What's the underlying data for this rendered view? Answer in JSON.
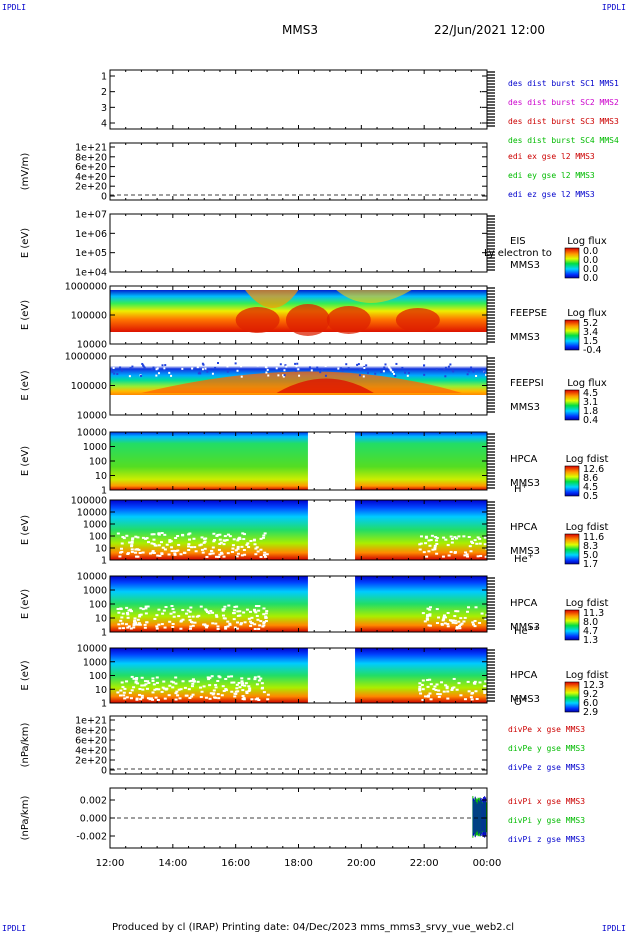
{
  "header": {
    "corner_left_top": "IPDLI",
    "corner_right_top": "IPDLI",
    "corner_left_bottom": "IPDLI",
    "corner_right_bottom": "IPDLI",
    "spacecraft": "MMS3",
    "datetime": "22/Jun/2021 12:00"
  },
  "footer": {
    "text": "Produced by cl (IRAP)   Printing date: 04/Dec/2023   mms_mms3_srvy_vue_web2.cl"
  },
  "colors": {
    "blue": "#0000cc",
    "magenta": "#cc00cc",
    "red": "#cc0000",
    "green": "#00bb00"
  },
  "chart_data": [
    {
      "id": "distributions",
      "type": "scatter",
      "yticks": [
        "1",
        "2",
        "3",
        "4"
      ],
      "ylabel": "",
      "legend": [
        {
          "text": "des dist burst SC1 MMS1",
          "color": "#0000cc"
        },
        {
          "text": "des dist burst SC2 MMS2",
          "color": "#cc00cc"
        },
        {
          "text": "des dist burst SC3 MMS3",
          "color": "#cc0000"
        },
        {
          "text": "des dist burst SC4 MMS4",
          "color": "#00bb00"
        }
      ],
      "points": [
        [
          23.8,
          1
        ],
        [
          23.8,
          2
        ],
        [
          23.8,
          3
        ]
      ]
    },
    {
      "id": "edi",
      "type": "line",
      "ylabel": "(mV/m)",
      "yticks": [
        "1e+21",
        "8e+20",
        "6e+20",
        "4e+20",
        "2e+20",
        "0"
      ],
      "legend": [
        {
          "text": "edi ex gse l2 MMS3",
          "color": "#cc0000"
        },
        {
          "text": "edi ey gse l2 MMS3",
          "color": "#00bb00"
        },
        {
          "text": "edi ez gse l2 MMS3",
          "color": "#0000cc"
        }
      ]
    },
    {
      "id": "eis",
      "type": "heatmap",
      "ylabel": "E (eV)",
      "yticks": [
        "1e+07",
        "1e+06",
        "1e+05",
        "1e+04"
      ],
      "label1": "EIS",
      "label2": "MMS3",
      "overlay": "Ly electron to",
      "colorbar_title": "Log flux",
      "colorbar_ticks": [
        "0.0",
        "0.0",
        "0.0",
        "0.0"
      ]
    },
    {
      "id": "feepse",
      "type": "heatmap",
      "ylabel": "E (eV)",
      "yticks": [
        "1000000",
        "100000",
        "10000"
      ],
      "label1": "FEEPSE",
      "label2": "MMS3",
      "colorbar_title": "Log flux",
      "colorbar_ticks": [
        "5.2",
        "3.4",
        "1.5",
        "-0.4"
      ]
    },
    {
      "id": "feepsi",
      "type": "heatmap",
      "ylabel": "E (eV)",
      "yticks": [
        "1000000",
        "100000",
        "10000"
      ],
      "label1": "FEEPSI",
      "label2": "MMS3",
      "colorbar_title": "Log flux",
      "colorbar_ticks": [
        "4.5",
        "3.1",
        "1.8",
        "0.4"
      ]
    },
    {
      "id": "hpca_h",
      "type": "heatmap",
      "ylabel": "E (eV)",
      "yticks": [
        "10000",
        "1000",
        "100",
        "10",
        "1"
      ],
      "label1": "HPCA",
      "label2": "MMS3",
      "species": "H",
      "species_sup": "+",
      "colorbar_title": "Log fdist",
      "colorbar_ticks": [
        "12.6",
        "8.6",
        "4.5",
        "0.5"
      ],
      "gap": [
        18.3,
        19.8
      ]
    },
    {
      "id": "hpca_he",
      "type": "heatmap",
      "ylabel": "E (eV)",
      "yticks": [
        "100000",
        "10000",
        "1000",
        "100",
        "10",
        "1"
      ],
      "label1": "HPCA",
      "label2": "MMS3",
      "species": "He",
      "species_sup": "+",
      "colorbar_title": "Log fdist",
      "colorbar_ticks": [
        "11.6",
        "8.3",
        "5.0",
        "1.7"
      ],
      "gap": [
        18.3,
        19.8
      ]
    },
    {
      "id": "hpca_hepp",
      "type": "heatmap",
      "ylabel": "E (eV)",
      "yticks": [
        "10000",
        "1000",
        "100",
        "10",
        "1"
      ],
      "label1": "HPCA",
      "label2": "MMS3",
      "species": "He",
      "species_sup": "++",
      "colorbar_title": "Log fdist",
      "colorbar_ticks": [
        "11.3",
        "8.0",
        "4.7",
        "1.3"
      ],
      "gap": [
        18.3,
        19.8
      ]
    },
    {
      "id": "hpca_o",
      "type": "heatmap",
      "ylabel": "E (eV)",
      "yticks": [
        "10000",
        "1000",
        "100",
        "10",
        "1"
      ],
      "label1": "HPCA",
      "label2": "MMS3",
      "species": "O",
      "species_sup": "+",
      "colorbar_title": "Log fdist",
      "colorbar_ticks": [
        "12.3",
        "9.2",
        "6.0",
        "2.9"
      ],
      "gap": [
        18.3,
        19.8
      ]
    },
    {
      "id": "divpe",
      "type": "line",
      "ylabel": "(nPa/km)",
      "yticks": [
        "1e+21",
        "8e+20",
        "6e+20",
        "4e+20",
        "2e+20",
        "0"
      ],
      "legend": [
        {
          "text": "divPe x gse MMS3",
          "color": "#cc0000"
        },
        {
          "text": "divPe y gse MMS3",
          "color": "#00bb00"
        },
        {
          "text": "divPe z gse MMS3",
          "color": "#0000cc"
        }
      ]
    },
    {
      "id": "divpi",
      "type": "line",
      "ylabel": "(nPa/km)",
      "yticks": [
        "0.002",
        "0.000",
        "-0.002"
      ],
      "ylim": [
        -0.003,
        0.003
      ],
      "legend": [
        {
          "text": "divPi x gse MMS3",
          "color": "#cc0000"
        },
        {
          "text": "divPi y gse MMS3",
          "color": "#00bb00"
        },
        {
          "text": "divPi z gse MMS3",
          "color": "#0000cc"
        }
      ]
    }
  ],
  "time_axis": {
    "range_hours": [
      12,
      24
    ],
    "ticks": [
      "12:00",
      "14:00",
      "16:00",
      "18:00",
      "20:00",
      "22:00",
      "00:00"
    ]
  }
}
